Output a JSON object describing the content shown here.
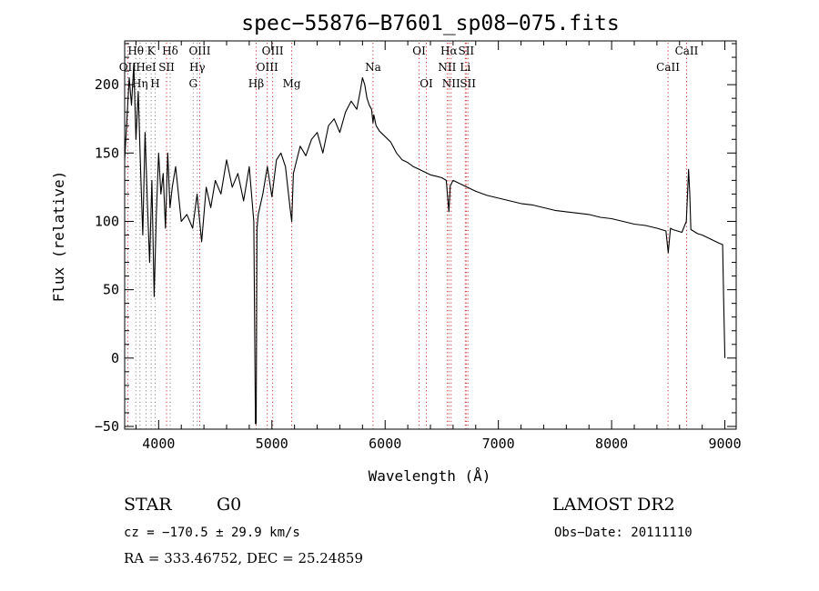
{
  "chart_data": {
    "type": "line",
    "title": "spec−55876−B7601_sp08−075.fits",
    "xlabel": "Wavelength (Å)",
    "ylabel": "Flux (relative)",
    "xlim": [
      3700,
      9100
    ],
    "ylim": [
      -52,
      232
    ],
    "xticks": [
      4000,
      5000,
      6000,
      7000,
      8000,
      9000
    ],
    "yticks": [
      -50,
      0,
      50,
      100,
      150,
      200
    ],
    "xtick_labels": [
      "4000",
      "5000",
      "6000",
      "7000",
      "8000",
      "9000"
    ],
    "ytick_labels": [
      "−50",
      "0",
      "50",
      "100",
      "150",
      "200"
    ],
    "grid": false,
    "line_color": "#000000",
    "marker_color": "#cc3333",
    "marker_gray": "#888888",
    "spectral_lines": [
      {
        "label": "Hθ",
        "wave": 3798,
        "row": 1,
        "color": "gray"
      },
      {
        "label": "OII",
        "wave": 3727,
        "row": 2,
        "color": "red"
      },
      {
        "label": "Hη",
        "wave": 3835,
        "row": 3,
        "color": "gray"
      },
      {
        "label": "HeI",
        "wave": 3889,
        "row": 2,
        "color": "gray"
      },
      {
        "label": "K",
        "wave": 3934,
        "row": 1,
        "color": "gray"
      },
      {
        "label": "H",
        "wave": 3969,
        "row": 3,
        "color": "gray"
      },
      {
        "label": "SII",
        "wave": 4070,
        "row": 2,
        "color": "red"
      },
      {
        "label": "Hδ",
        "wave": 4102,
        "row": 1,
        "color": "gray"
      },
      {
        "label": "OIII",
        "wave": 4363,
        "row": 1,
        "color": "red"
      },
      {
        "label": "Hγ",
        "wave": 4341,
        "row": 2,
        "color": "gray"
      },
      {
        "label": "G",
        "wave": 4305,
        "row": 3,
        "color": "gray"
      },
      {
        "label": "Hβ",
        "wave": 4861,
        "row": 3,
        "color": "red"
      },
      {
        "label": "OIII",
        "wave": 5007,
        "row": 1,
        "color": "red"
      },
      {
        "label": "OIII",
        "wave": 4959,
        "row": 2,
        "color": "red"
      },
      {
        "label": "Mg",
        "wave": 5175,
        "row": 3,
        "color": "red"
      },
      {
        "label": "Na",
        "wave": 5893,
        "row": 2,
        "color": "red"
      },
      {
        "label": "OI",
        "wave": 6300,
        "row": 1,
        "color": "red"
      },
      {
        "label": "OI",
        "wave": 6364,
        "row": 3,
        "color": "red"
      },
      {
        "label": "Hα",
        "wave": 6563,
        "row": 1,
        "color": "red"
      },
      {
        "label": "NII",
        "wave": 6548,
        "row": 2,
        "color": "red"
      },
      {
        "label": "NII",
        "wave": 6583,
        "row": 3,
        "color": "red"
      },
      {
        "label": "SII",
        "wave": 6716,
        "row": 1,
        "color": "red"
      },
      {
        "label": "Li",
        "wave": 6708,
        "row": 2,
        "color": "red"
      },
      {
        "label": "SII",
        "wave": 6731,
        "row": 3,
        "color": "red"
      },
      {
        "label": "CaII",
        "wave": 8662,
        "row": 1,
        "color": "red"
      },
      {
        "label": "CaII",
        "wave": 8498,
        "row": 2,
        "color": "red"
      }
    ],
    "series": [
      {
        "x": [
          3700,
          3720,
          3740,
          3760,
          3780,
          3800,
          3820,
          3840,
          3860,
          3880,
          3900,
          3920,
          3940,
          3960,
          3980,
          4000,
          4020,
          4040,
          4060,
          4080,
          4100,
          4120,
          4150,
          4200,
          4250,
          4300,
          4340,
          4380,
          4420,
          4460,
          4500,
          4550,
          4600,
          4650,
          4700,
          4750,
          4800,
          4840,
          4855,
          4861,
          4868,
          4880,
          4920,
          4960,
          5000,
          5040,
          5080,
          5120,
          5160,
          5175,
          5190,
          5250,
          5300,
          5350,
          5400,
          5450,
          5500,
          5550,
          5600,
          5650,
          5700,
          5750,
          5780,
          5800,
          5820,
          5840,
          5860,
          5880,
          5893,
          5900,
          5920,
          5950,
          6000,
          6050,
          6100,
          6150,
          6200,
          6250,
          6300,
          6350,
          6400,
          6450,
          6500,
          6540,
          6563,
          6575,
          6600,
          6650,
          6700,
          6800,
          6900,
          7000,
          7100,
          7200,
          7300,
          7400,
          7500,
          7600,
          7700,
          7800,
          7900,
          8000,
          8100,
          8200,
          8300,
          8400,
          8480,
          8500,
          8520,
          8540,
          8580,
          8620,
          8660,
          8680,
          8690,
          8700,
          8720,
          8760,
          8800,
          8850,
          8900,
          8950,
          8980,
          8990,
          9000
        ],
        "y": [
          145,
          175,
          205,
          185,
          215,
          160,
          195,
          140,
          90,
          165,
          115,
          70,
          130,
          45,
          105,
          150,
          120,
          135,
          95,
          150,
          110,
          125,
          140,
          100,
          105,
          95,
          120,
          85,
          125,
          110,
          130,
          120,
          145,
          125,
          135,
          115,
          140,
          100,
          -48,
          -48,
          95,
          105,
          120,
          140,
          118,
          145,
          150,
          140,
          110,
          100,
          135,
          155,
          148,
          160,
          165,
          150,
          170,
          175,
          165,
          180,
          188,
          182,
          195,
          205,
          200,
          190,
          185,
          182,
          172,
          178,
          170,
          166,
          162,
          158,
          150,
          145,
          143,
          140,
          138,
          136,
          134,
          133,
          132,
          130,
          107,
          126,
          130,
          128,
          126,
          122,
          119,
          117,
          115,
          113,
          112,
          110,
          108,
          107,
          106,
          105,
          103,
          102,
          100,
          98,
          97,
          95,
          93,
          77,
          95,
          94,
          93,
          92,
          100,
          138,
          120,
          94,
          93,
          91,
          90,
          88,
          86,
          84,
          83,
          40,
          0
        ]
      }
    ],
    "info": {
      "class": "STAR",
      "subclass": "G0",
      "survey": "LAMOST DR2",
      "cz": "cz = −170.5 ± 29.9 km/s",
      "obs_date": "Obs−Date: 20111110",
      "radec": "RA = 333.46752, DEC =  25.24859"
    }
  }
}
